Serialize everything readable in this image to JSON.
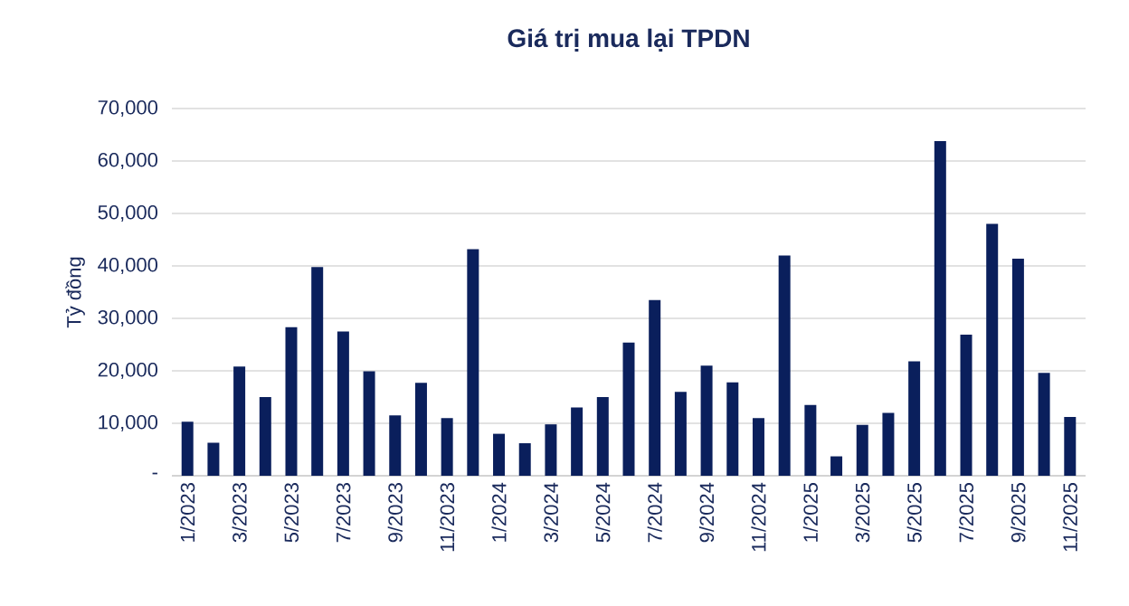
{
  "chart_data": {
    "type": "bar",
    "title": "Giá trị mua lại TPDN",
    "ylabel": "Tỷ đồng",
    "categories": [
      "1/2023",
      null,
      "3/2023",
      null,
      "5/2023",
      null,
      "7/2023",
      null,
      "9/2023",
      null,
      "11/2023",
      null,
      "1/2024",
      null,
      "3/2024",
      null,
      "5/2024",
      null,
      "7/2024",
      null,
      "9/2024",
      null,
      "11/2024",
      null,
      "1/2025",
      null,
      "3/2025",
      null,
      "5/2025",
      null,
      "7/2025",
      null,
      "9/2025",
      null,
      "11/2025"
    ],
    "values": [
      10300,
      6300,
      20800,
      15000,
      28300,
      39800,
      27500,
      19900,
      11500,
      17700,
      11000,
      43200,
      8000,
      6200,
      9800,
      13000,
      15000,
      25400,
      33500,
      16000,
      21000,
      17800,
      11000,
      42000,
      13500,
      3700,
      9700,
      12000,
      21800,
      63800,
      26900,
      48000,
      41400,
      19600,
      11200
    ],
    "color": "#0a1f5c",
    "ylim": [
      0,
      70000
    ],
    "yticks": [
      {
        "value": 0,
        "label": "-"
      },
      {
        "value": 10000,
        "label": "10,000"
      },
      {
        "value": 20000,
        "label": "20,000"
      },
      {
        "value": 30000,
        "label": "30,000"
      },
      {
        "value": 40000,
        "label": "40,000"
      },
      {
        "value": 50000,
        "label": "50,000"
      },
      {
        "value": 60000,
        "label": "60,000"
      },
      {
        "value": 70000,
        "label": "70,000"
      }
    ],
    "grid": "y"
  }
}
